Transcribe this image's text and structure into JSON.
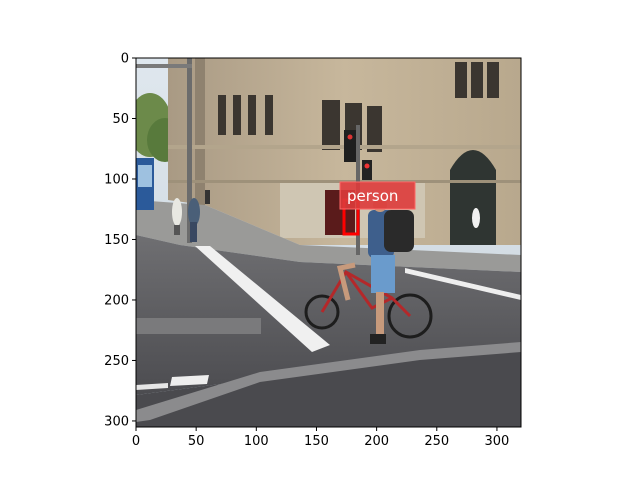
{
  "figure": {
    "image_description_alt": "street photo with cyclist",
    "x_axis": {
      "ticks": [
        "0",
        "50",
        "100",
        "150",
        "200",
        "250",
        "300"
      ],
      "lim": [
        0,
        320
      ]
    },
    "y_axis": {
      "ticks": [
        "0",
        "50",
        "100",
        "150",
        "200",
        "250",
        "300"
      ],
      "lim": [
        305,
        0
      ]
    },
    "annotation": {
      "label": "person",
      "box_color": "#ff0000",
      "label_bg": "#dd3b3b"
    }
  }
}
